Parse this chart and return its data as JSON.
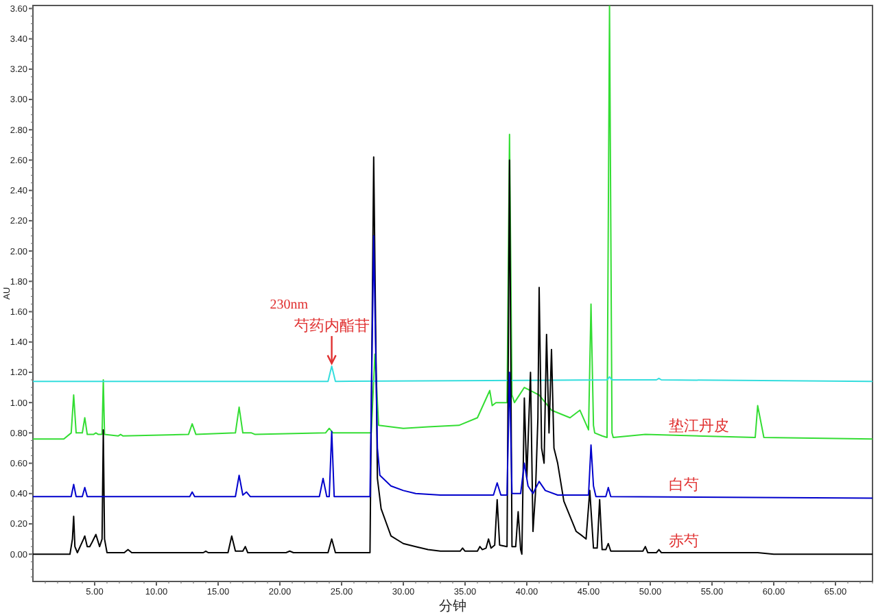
{
  "chart_data": {
    "type": "line",
    "xlabel": "分钟",
    "ylabel": "AU",
    "xlim": [
      0,
      68
    ],
    "ylim": [
      -0.18,
      3.62
    ],
    "xticks": [
      {
        "value": 5,
        "label": "5.00"
      },
      {
        "value": 10,
        "label": "10.00"
      },
      {
        "value": 15,
        "label": "15.00"
      },
      {
        "value": 20,
        "label": "20.00"
      },
      {
        "value": 25,
        "label": "25.00"
      },
      {
        "value": 30,
        "label": "30.00"
      },
      {
        "value": 35,
        "label": "35.00"
      },
      {
        "value": 40,
        "label": "40.00"
      },
      {
        "value": 45,
        "label": "45.00"
      },
      {
        "value": 50,
        "label": "50.00"
      },
      {
        "value": 55,
        "label": "55.00"
      },
      {
        "value": 60,
        "label": "60.00"
      },
      {
        "value": 65,
        "label": "65.00"
      }
    ],
    "yticks": [
      {
        "value": 0,
        "label": "0.00"
      },
      {
        "value": 0.2,
        "label": "0.20"
      },
      {
        "value": 0.4,
        "label": "0.40"
      },
      {
        "value": 0.6,
        "label": "0.60"
      },
      {
        "value": 0.8,
        "label": "0.80"
      },
      {
        "value": 1.0,
        "label": "1.00"
      },
      {
        "value": 1.2,
        "label": "1.20"
      },
      {
        "value": 1.4,
        "label": "1.40"
      },
      {
        "value": 1.6,
        "label": "1.60"
      },
      {
        "value": 1.8,
        "label": "1.80"
      },
      {
        "value": 2.0,
        "label": "2.00"
      },
      {
        "value": 2.2,
        "label": "2.20"
      },
      {
        "value": 2.4,
        "label": "2.40"
      },
      {
        "value": 2.6,
        "label": "2.60"
      },
      {
        "value": 2.8,
        "label": "2.80"
      },
      {
        "value": 3.0,
        "label": "3.00"
      },
      {
        "value": 3.2,
        "label": "3.20"
      },
      {
        "value": 3.4,
        "label": "3.40"
      },
      {
        "value": 3.6,
        "label": "3.60"
      }
    ],
    "grid": false,
    "line_style": "solid",
    "annotations": [
      "230nm",
      {
        "text": "芍药内酯苷",
        "x": 24.2,
        "y": 1.24
      }
    ],
    "series": [
      {
        "name": "赤芍",
        "color": "#000000",
        "x": [
          0,
          3.0,
          3.2,
          3.3,
          3.4,
          3.6,
          4.1,
          4.2,
          4.4,
          4.6,
          4.8,
          5.1,
          5.4,
          5.6,
          5.7,
          5.8,
          6.0,
          7.4,
          7.7,
          8.0,
          13.8,
          14.0,
          14.2,
          15.8,
          16.1,
          16.4,
          17.0,
          17.2,
          17.4,
          20.5,
          20.8,
          21.1,
          23.9,
          24.2,
          24.5,
          27.3,
          27.6,
          27.9,
          28.2,
          29,
          30,
          31,
          32,
          33,
          34.6,
          34.8,
          35.0,
          36.0,
          36.2,
          36.4,
          36.7,
          36.9,
          37.1,
          37.4,
          37.6,
          37.8,
          38.4,
          38.6,
          38.8,
          39.1,
          39.3,
          39.5,
          39.6,
          39.8,
          40.0,
          40.3,
          40.5,
          40.7,
          40.9,
          41.0,
          41.2,
          41.4,
          41.6,
          41.8,
          42.0,
          42.2,
          42.5,
          43,
          44,
          44.5,
          44.8,
          45.1,
          45.4,
          45.7,
          45.9,
          46.1,
          46.4,
          46.6,
          46.8,
          49.4,
          49.6,
          49.8,
          50.5,
          50.7,
          50.9,
          58.7,
          60,
          68
        ],
        "values": [
          0,
          0,
          0.1,
          0.25,
          0.05,
          0.01,
          0.1,
          0.12,
          0.05,
          0.05,
          0.08,
          0.13,
          0.05,
          0.1,
          0.82,
          0.1,
          0.01,
          0.01,
          0.03,
          0.01,
          0.01,
          0.02,
          0.01,
          0.01,
          0.12,
          0.02,
          0.02,
          0.05,
          0.01,
          0.01,
          0.02,
          0.01,
          0.01,
          0.1,
          0.01,
          0.01,
          2.62,
          0.5,
          0.3,
          0.12,
          0.07,
          0.05,
          0.03,
          0.02,
          0.02,
          0.04,
          0.02,
          0.02,
          0.05,
          0.03,
          0.04,
          0.1,
          0.04,
          0.06,
          0.36,
          0.06,
          0.05,
          2.6,
          0.05,
          0.05,
          0.28,
          0.03,
          0.0,
          1.03,
          0.5,
          1.2,
          0.15,
          0.4,
          0.9,
          1.76,
          0.7,
          0.6,
          1.45,
          0.8,
          1.35,
          0.7,
          0.6,
          0.35,
          0.15,
          0.12,
          0.1,
          0.42,
          0.04,
          0.04,
          0.36,
          0.03,
          0.03,
          0.07,
          0.02,
          0.02,
          0.05,
          0.01,
          0.01,
          0.03,
          0.01,
          0.01,
          0.0,
          0.0
        ]
      },
      {
        "name": "白芍",
        "color": "#0000cc",
        "x": [
          0,
          3.1,
          3.3,
          3.5,
          4.0,
          4.2,
          4.4,
          12.7,
          12.9,
          13.1,
          16.4,
          16.7,
          17.0,
          17.3,
          17.6,
          23.2,
          23.5,
          23.8,
          24.0,
          24.2,
          24.4,
          27.3,
          27.6,
          27.9,
          28.1,
          29,
          30,
          31,
          33,
          37.3,
          37.6,
          37.9,
          38.4,
          38.6,
          38.8,
          39.5,
          39.8,
          40.1,
          40.5,
          41.0,
          41.5,
          42.5,
          45.0,
          45.2,
          45.4,
          45.6,
          46.4,
          46.6,
          46.8,
          68
        ],
        "values": [
          0.38,
          0.38,
          0.46,
          0.38,
          0.38,
          0.44,
          0.38,
          0.38,
          0.41,
          0.38,
          0.38,
          0.52,
          0.39,
          0.41,
          0.38,
          0.38,
          0.5,
          0.38,
          0.38,
          0.81,
          0.38,
          0.38,
          2.1,
          0.7,
          0.52,
          0.45,
          0.42,
          0.4,
          0.39,
          0.39,
          0.47,
          0.39,
          0.39,
          1.2,
          0.4,
          0.4,
          0.6,
          0.45,
          0.4,
          0.48,
          0.42,
          0.39,
          0.39,
          0.72,
          0.45,
          0.38,
          0.38,
          0.44,
          0.38,
          0.37
        ]
      },
      {
        "name": "垫江丹皮",
        "color": "#33dd33",
        "x": [
          0,
          2.5,
          3.1,
          3.3,
          3.5,
          4.0,
          4.2,
          4.4,
          4.9,
          5.1,
          5.3,
          5.6,
          5.7,
          5.8,
          6.9,
          7.1,
          7.3,
          12.6,
          12.9,
          13.2,
          16.4,
          16.7,
          17.0,
          17.7,
          18.0,
          23.7,
          24.0,
          24.3,
          27.4,
          27.7,
          28.0,
          30,
          32,
          34.5,
          36,
          37.0,
          37.2,
          37.5,
          38.4,
          38.6,
          38.8,
          39.0,
          39.8,
          41,
          42,
          43.5,
          44.3,
          45.0,
          45.2,
          45.4,
          45.5,
          46.1,
          46.5,
          46.7,
          46.9,
          47.0,
          49.6,
          58.5,
          58.7,
          59.2,
          68
        ],
        "values": [
          0.76,
          0.76,
          0.8,
          1.05,
          0.8,
          0.8,
          0.9,
          0.79,
          0.79,
          0.8,
          0.79,
          0.79,
          1.15,
          0.79,
          0.78,
          0.79,
          0.78,
          0.79,
          0.86,
          0.79,
          0.8,
          0.97,
          0.8,
          0.8,
          0.79,
          0.8,
          0.83,
          0.8,
          0.8,
          1.32,
          0.85,
          0.83,
          0.84,
          0.85,
          0.9,
          1.08,
          0.98,
          1.0,
          1.0,
          2.77,
          1.05,
          1.0,
          1.1,
          1.05,
          0.95,
          0.9,
          0.95,
          0.82,
          1.65,
          0.85,
          0.8,
          0.78,
          0.77,
          3.62,
          0.8,
          0.77,
          0.79,
          0.77,
          0.98,
          0.77,
          0.76
        ]
      },
      {
        "color": "#33dddd",
        "x": [
          0,
          23.9,
          24.2,
          24.5,
          46.5,
          46.7,
          46.9,
          50.5,
          50.7,
          50.9,
          68
        ],
        "values": [
          1.14,
          1.14,
          1.24,
          1.14,
          1.15,
          1.17,
          1.15,
          1.15,
          1.16,
          1.15,
          1.14
        ]
      }
    ]
  }
}
